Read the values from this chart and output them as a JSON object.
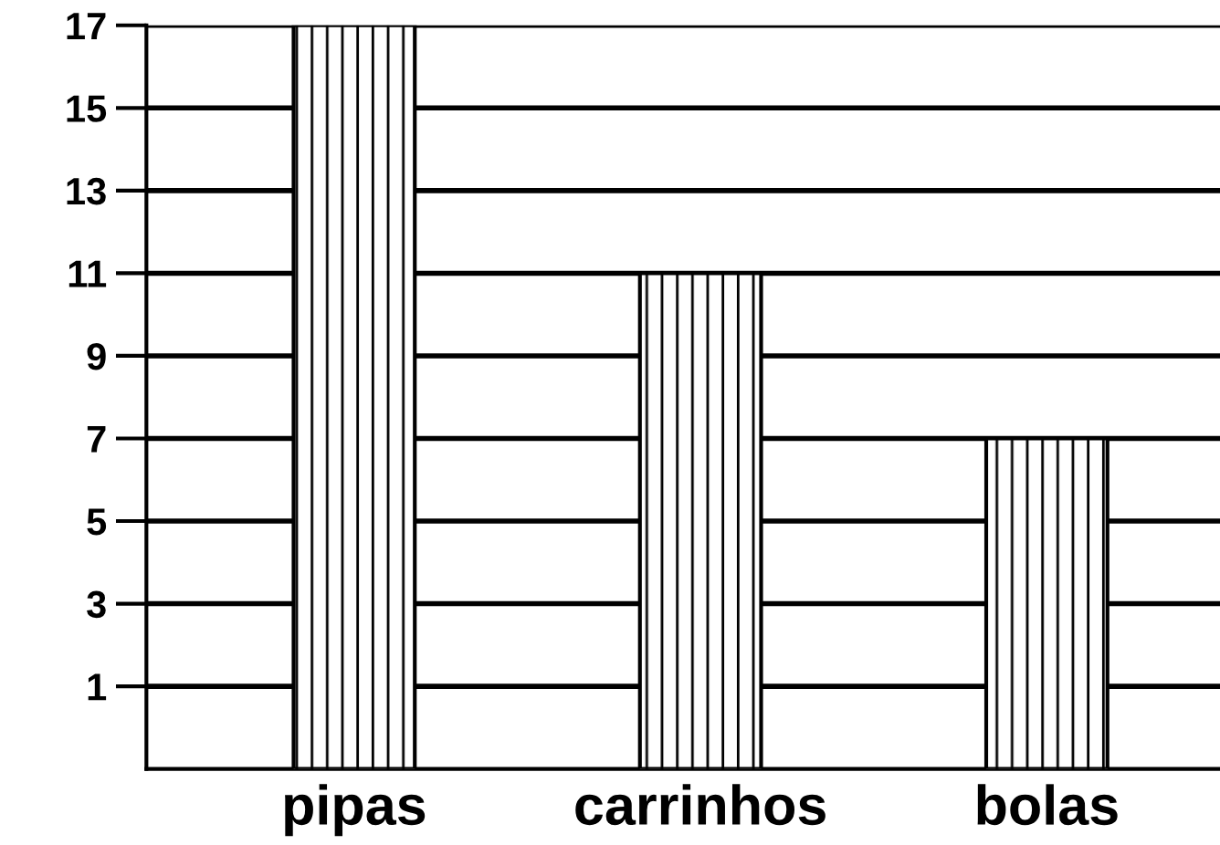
{
  "chart_data": {
    "type": "bar",
    "categories": [
      "pipas",
      "carrinhos",
      "bolas"
    ],
    "values": [
      18,
      12,
      8
    ],
    "base": [
      -1,
      -1,
      -1
    ],
    "color": "#000000",
    "ylim": [
      -1,
      17
    ],
    "yticks": [
      1,
      3,
      5,
      7,
      9,
      11,
      13,
      15,
      17
    ],
    "grid": "y"
  }
}
